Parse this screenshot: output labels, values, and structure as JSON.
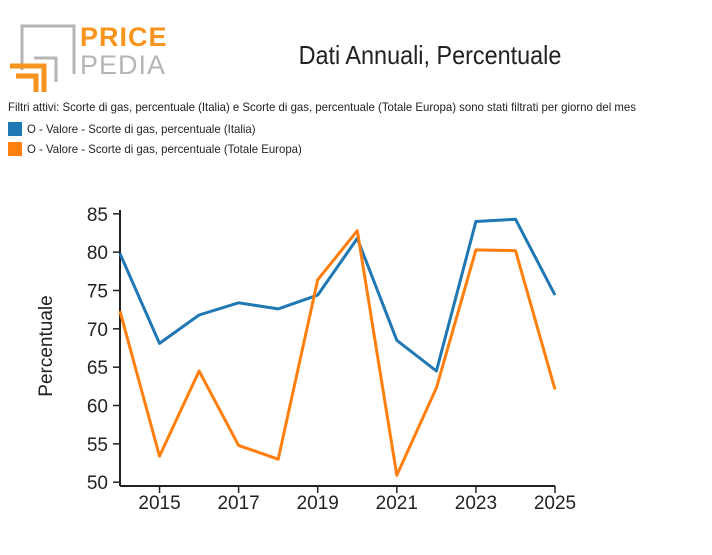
{
  "logo": {
    "word1": "PRICE",
    "word2": "PEDIA",
    "accent": "#f7941d",
    "gray": "#b5b5b5"
  },
  "header": {
    "title": "Dati Annuali, Percentuale"
  },
  "filters": {
    "text": "Filtri attivi: Scorte di gas, percentuale (Italia) e Scorte di gas, percentuale (Totale Europa) sono stati filtrati per giorno del mes"
  },
  "legend": [
    {
      "label": "O - Valore - Scorte di gas, percentuale (Italia)",
      "color": "#1f77b4"
    },
    {
      "label": "O - Valore - Scorte di gas, percentuale (Totale Europa)",
      "color": "#ff7f0e"
    }
  ],
  "chart_data": {
    "type": "line",
    "title": "Dati Annuali, Percentuale",
    "xlabel": "",
    "ylabel": "Percentuale",
    "x": [
      2014,
      2015,
      2016,
      2017,
      2018,
      2019,
      2020,
      2021,
      2022,
      2023,
      2024,
      2025
    ],
    "xlim": [
      2014,
      2025
    ],
    "ylim": [
      49.5,
      85.5
    ],
    "xticks": [
      2015,
      2017,
      2019,
      2021,
      2023,
      2025
    ],
    "yticks": [
      50,
      55,
      60,
      65,
      70,
      75,
      80,
      85
    ],
    "grid": false,
    "legend_position": "top-left",
    "series": [
      {
        "name": "O - Valore - Scorte di gas, percentuale (Italia)",
        "color": "#1f77b4",
        "values": [
          79.8,
          68.1,
          71.8,
          73.4,
          72.6,
          74.4,
          81.8,
          68.5,
          64.5,
          84.0,
          84.3,
          74.4
        ]
      },
      {
        "name": "O - Valore - Scorte di gas, percentuale (Totale Europa)",
        "color": "#ff7f0e",
        "values": [
          72.3,
          53.4,
          64.5,
          54.8,
          53.0,
          76.4,
          82.8,
          50.9,
          62.3,
          80.3,
          80.2,
          62.1
        ]
      }
    ]
  }
}
